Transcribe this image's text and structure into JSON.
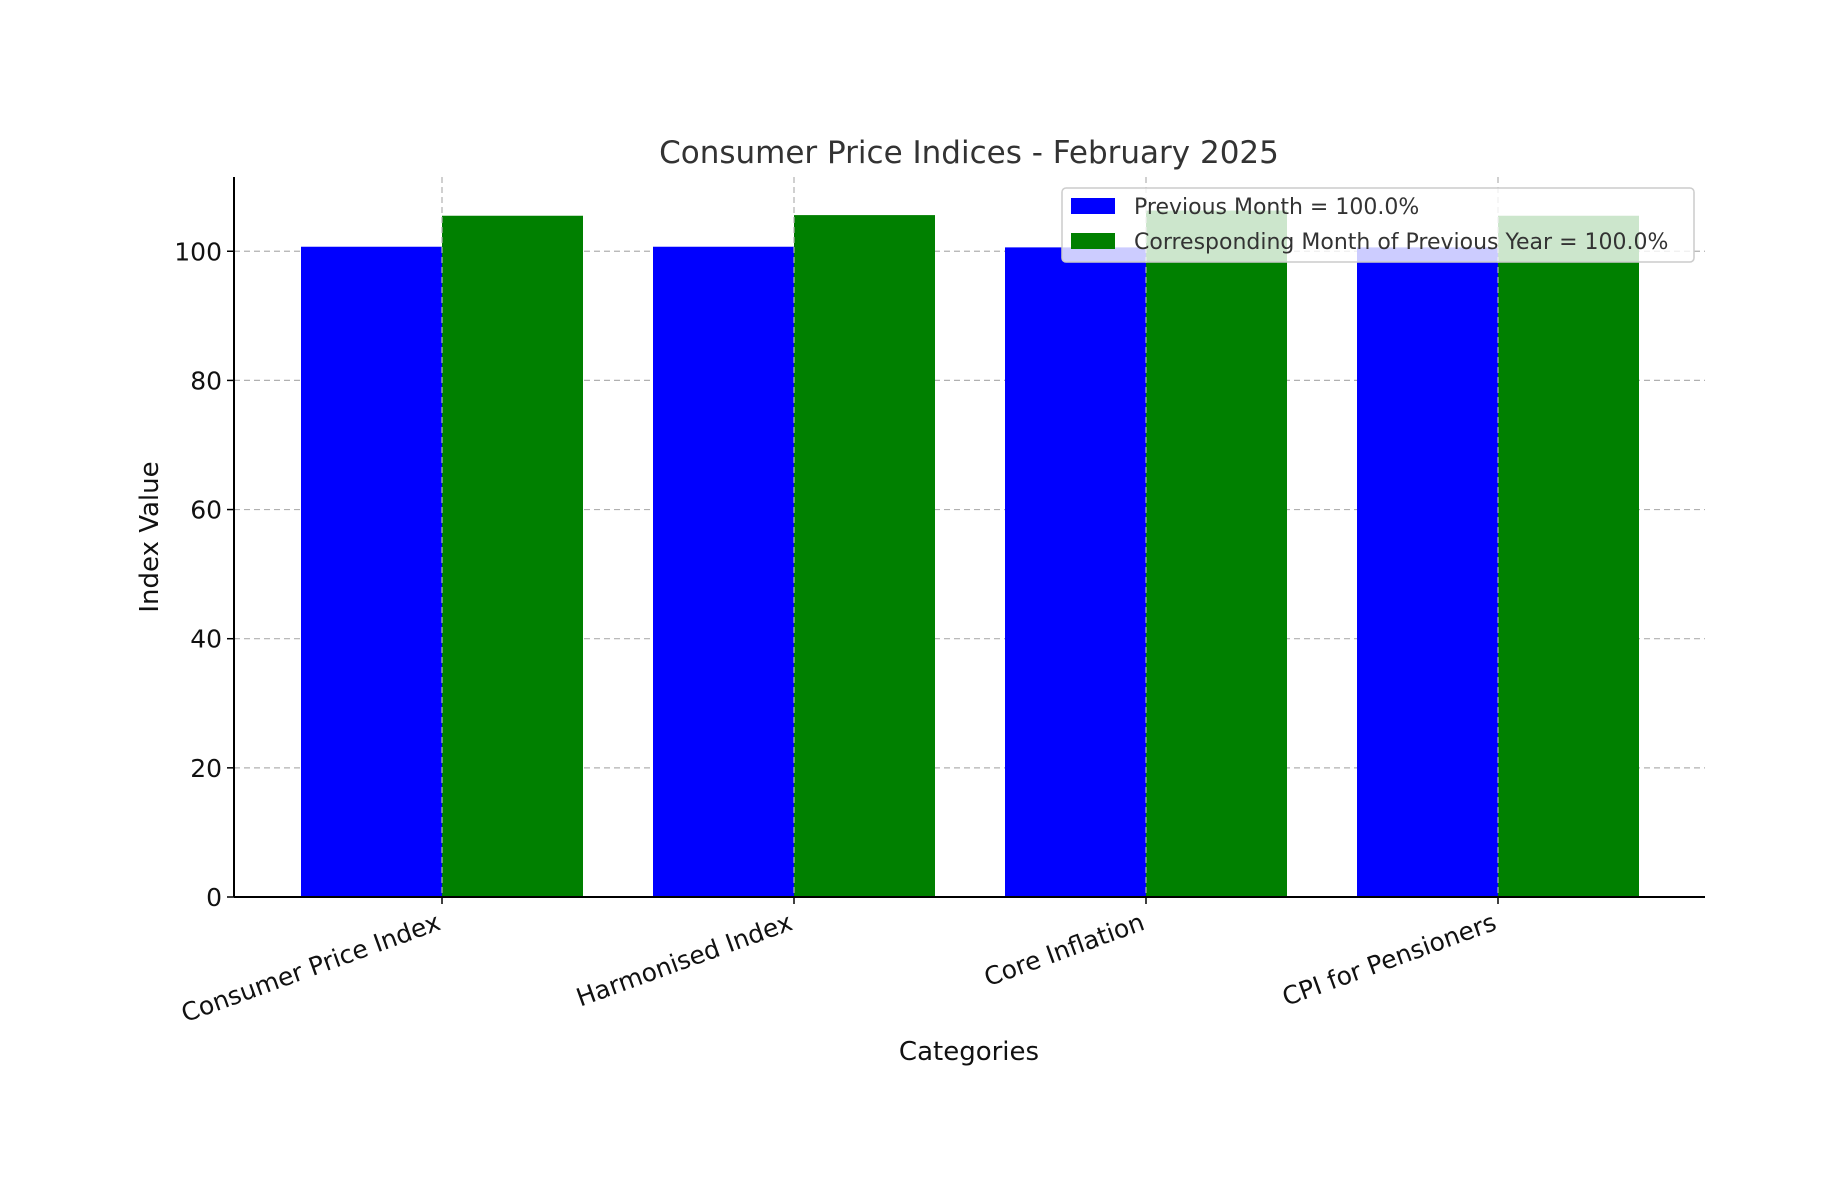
{
  "chart_data": {
    "type": "bar",
    "title": "Consumer Price Indices - February 2025",
    "xlabel": "Categories",
    "ylabel": "Index Value",
    "categories": [
      "Consumer Price Index",
      "Harmonised Index",
      "Core Inflation",
      "CPI for Pensioners"
    ],
    "series": [
      {
        "name": "Previous Month = 100.0%",
        "values": [
          100.7,
          100.7,
          100.6,
          100.6
        ],
        "color": "#0000ff"
      },
      {
        "name": "Corresponding Month of Previous Year = 100.0%",
        "values": [
          105.5,
          105.6,
          106.3,
          105.5
        ],
        "color": "#008000"
      }
    ],
    "ylim": [
      0,
      111.5
    ],
    "yticks": [
      0,
      20,
      40,
      60,
      80,
      100
    ],
    "grid": true,
    "legend_position": "top-right"
  }
}
